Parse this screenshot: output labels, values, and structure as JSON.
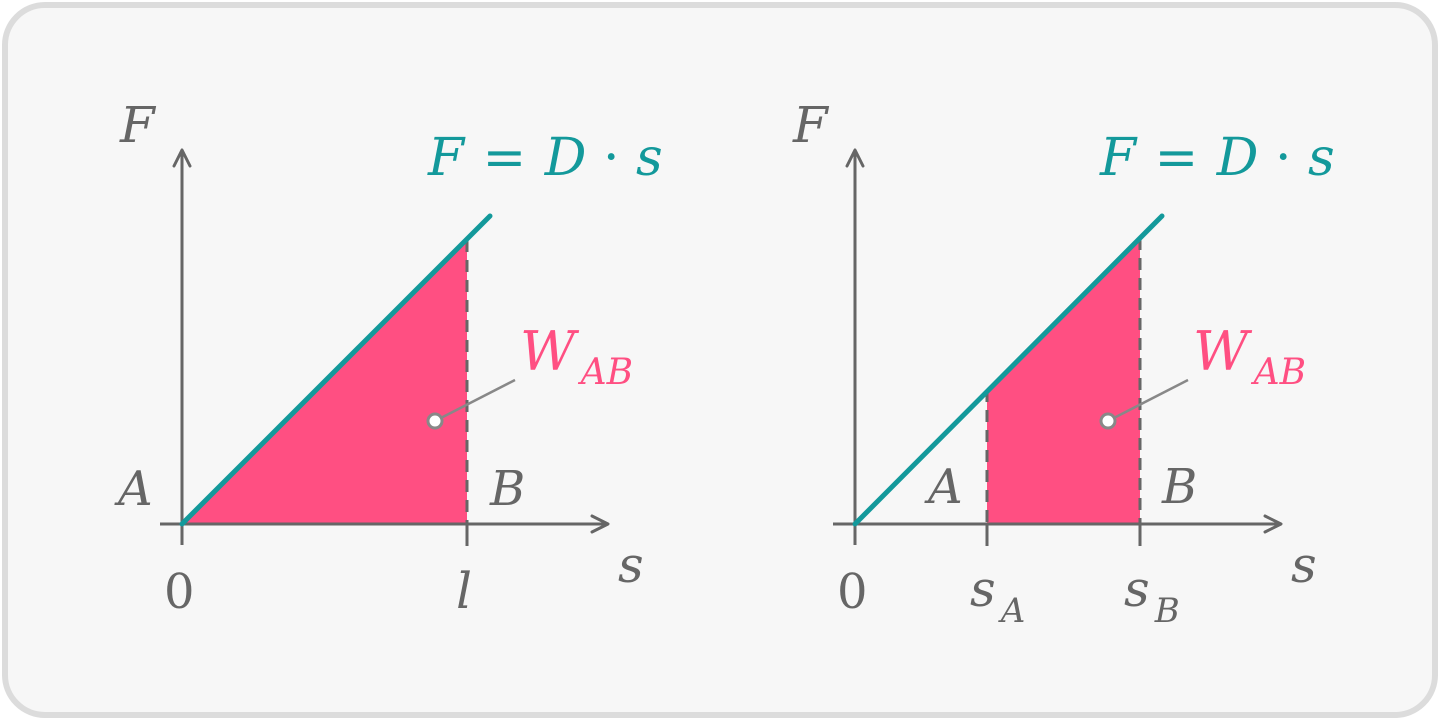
{
  "colors": {
    "background": "#f7f7f7",
    "border": "#dcdcdc",
    "axis": "#666666",
    "line": "#13999b",
    "area": "#ff4f82"
  },
  "left_panel": {
    "y_axis_label": "F",
    "x_axis_label": "s",
    "equation": {
      "lhs": "F",
      "eq": "=",
      "rhs_d": "D",
      "dot": "·",
      "rhs_s": "s"
    },
    "work_label": {
      "main": "W",
      "sub": "AB"
    },
    "point_a": "A",
    "point_b": "B",
    "origin": "0",
    "tick_label": "l"
  },
  "right_panel": {
    "y_axis_label": "F",
    "x_axis_label": "s",
    "equation": {
      "lhs": "F",
      "eq": "=",
      "rhs_d": "D",
      "dot": "·",
      "rhs_s": "s"
    },
    "work_label": {
      "main": "W",
      "sub": "AB"
    },
    "point_a": "A",
    "point_b": "B",
    "origin": "0",
    "tick_a": {
      "main": "s",
      "sub": "A"
    },
    "tick_b": {
      "main": "s",
      "sub": "B"
    }
  }
}
